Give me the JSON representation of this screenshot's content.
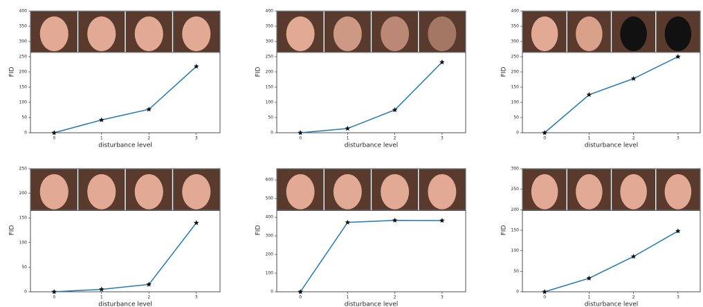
{
  "chart_data": [
    {
      "type": "line",
      "x": [
        0,
        1,
        2,
        3
      ],
      "xlim": [
        -0.5,
        3.5
      ],
      "xticks": [
        0,
        1,
        2,
        3
      ],
      "ylim": [
        0,
        400
      ],
      "yticks": [
        0,
        50,
        100,
        150,
        200,
        250,
        300,
        350,
        400
      ],
      "xlabel": "disturbance level",
      "ylabel": "FID",
      "values": [
        0,
        42,
        77,
        218
      ],
      "color": "#1f77b4",
      "marker_color": "#111111"
    },
    {
      "type": "line",
      "x": [
        0,
        1,
        2,
        3
      ],
      "xlim": [
        -0.5,
        3.5
      ],
      "xticks": [
        0,
        1,
        2,
        3
      ],
      "ylim": [
        0,
        400
      ],
      "yticks": [
        0,
        50,
        100,
        150,
        200,
        250,
        300,
        350,
        400
      ],
      "xlabel": "disturbance level",
      "ylabel": "FID",
      "values": [
        0,
        14,
        75,
        232
      ],
      "color": "#1f77b4",
      "marker_color": "#111111"
    },
    {
      "type": "line",
      "x": [
        0,
        1,
        2,
        3
      ],
      "xlim": [
        -0.5,
        3.5
      ],
      "xticks": [
        0,
        1,
        2,
        3
      ],
      "ylim": [
        0,
        400
      ],
      "yticks": [
        0,
        50,
        100,
        150,
        200,
        250,
        300,
        350,
        400
      ],
      "xlabel": "disturbance level",
      "ylabel": "FID",
      "values": [
        0,
        125,
        178,
        250
      ],
      "color": "#1f77b4",
      "marker_color": "#111111"
    },
    {
      "type": "line",
      "x": [
        0,
        1,
        2,
        3
      ],
      "xlim": [
        -0.5,
        3.5
      ],
      "xticks": [
        0,
        1,
        2,
        3
      ],
      "ylim": [
        0,
        250
      ],
      "yticks": [
        0,
        50,
        100,
        150,
        200,
        250
      ],
      "xlabel": "disturbance level",
      "ylabel": "FID",
      "values": [
        0,
        5,
        15,
        140
      ],
      "color": "#1f77b4",
      "marker_color": "#111111"
    },
    {
      "type": "line",
      "x": [
        0,
        1,
        2,
        3
      ],
      "xlim": [
        -0.5,
        3.5
      ],
      "xticks": [
        0,
        1,
        2,
        3
      ],
      "ylim": [
        0,
        660
      ],
      "yticks": [
        0,
        100,
        200,
        300,
        400,
        500,
        600
      ],
      "xlabel": "disturbance level",
      "ylabel": "FID",
      "values": [
        0,
        372,
        383,
        382
      ],
      "color": "#1f77b4",
      "marker_color": "#111111"
    },
    {
      "type": "line",
      "x": [
        0,
        1,
        2,
        3
      ],
      "xlim": [
        -0.5,
        3.5
      ],
      "xticks": [
        0,
        1,
        2,
        3
      ],
      "ylim": [
        0,
        300
      ],
      "yticks": [
        0,
        50,
        100,
        150,
        200,
        250,
        300
      ],
      "xlabel": "disturbance level",
      "ylabel": "FID",
      "values": [
        0,
        33,
        86,
        148
      ],
      "color": "#1f77b4",
      "marker_color": "#111111"
    }
  ]
}
